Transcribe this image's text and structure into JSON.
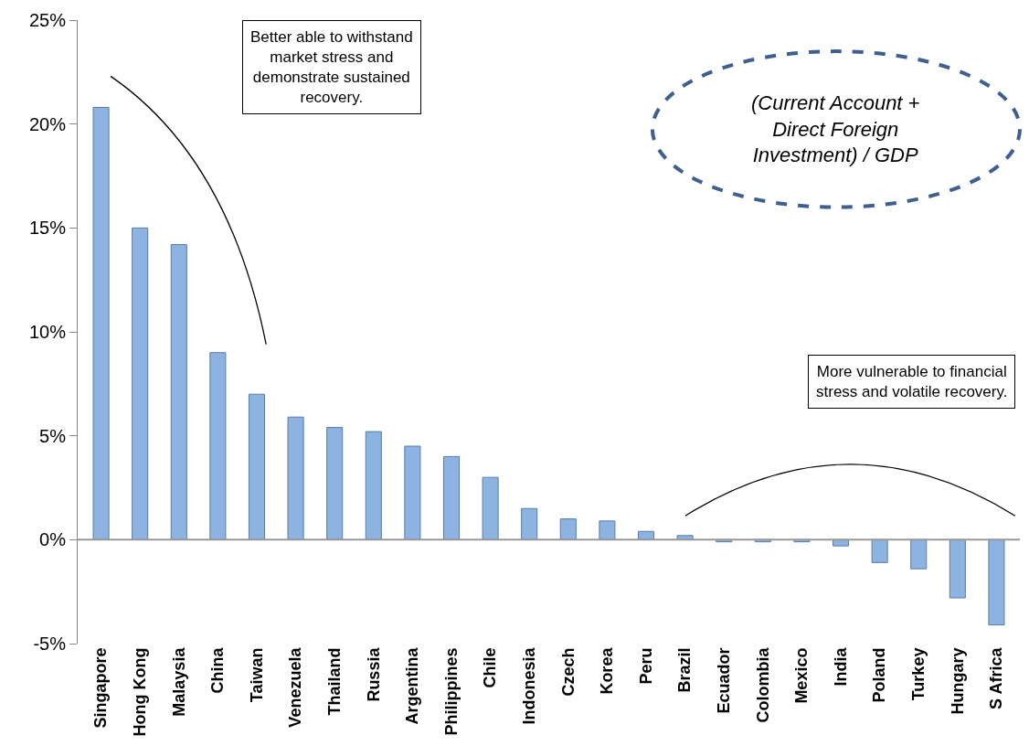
{
  "chart_data": {
    "type": "bar",
    "categories": [
      "Singapore",
      "Hong Kong",
      "Malaysia",
      "China",
      "Taiwan",
      "Venezuela",
      "Thailand",
      "Russia",
      "Argentina",
      "Philippines",
      "Chile",
      "Indonesia",
      "Czech",
      "Korea",
      "Peru",
      "Brazil",
      "Ecuador",
      "Colombia",
      "Mexico",
      "India",
      "Poland",
      "Turkey",
      "Hungary",
      "S Africa"
    ],
    "values": [
      20.8,
      15.0,
      14.2,
      9.0,
      7.0,
      5.9,
      5.4,
      5.2,
      4.5,
      4.0,
      3.0,
      1.5,
      1.0,
      0.9,
      0.4,
      0.2,
      -0.1,
      -0.1,
      -0.1,
      -0.3,
      -1.1,
      -1.4,
      -2.8,
      -4.1
    ],
    "color": "#8db3e2",
    "ylim": [
      -5,
      25
    ],
    "yticks": [
      {
        "value": -5,
        "label": "-5%"
      },
      {
        "value": 0,
        "label": "0%"
      },
      {
        "value": 5,
        "label": "5%"
      },
      {
        "value": 10,
        "label": "10%"
      },
      {
        "value": 15,
        "label": "15%"
      },
      {
        "value": 20,
        "label": "20%"
      },
      {
        "value": 25,
        "label": "25%"
      }
    ],
    "ref_lines": [
      {
        "axis": "y",
        "value": 0,
        "color": "#999999"
      }
    ],
    "annotations": [
      "Better able to withstand\nmarket stress and\ndemonstrate sustained\nrecovery.",
      "More vulnerable to financial\nstress and volatile recovery.",
      "(Current Account +\nDirect Foreign\nInvestment) / GDP"
    ]
  }
}
